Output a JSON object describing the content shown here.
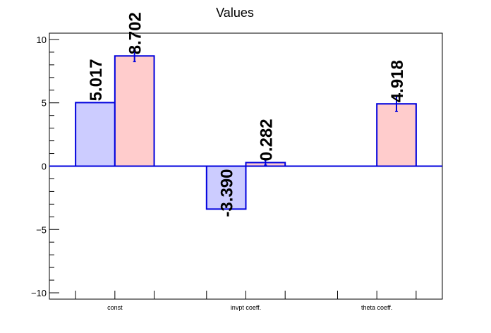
{
  "chart_data": {
    "type": "bar",
    "title": "Values",
    "xlabel": "",
    "ylabel": "",
    "categories": [
      "const",
      "invpt coeff.",
      "theta coeff."
    ],
    "ylim": [
      -10.5,
      10.5
    ],
    "yticks": [
      -10,
      -5,
      0,
      5,
      10
    ],
    "yticklabels": [
      "−10",
      "−5",
      "0",
      "5",
      "10"
    ],
    "grid": false,
    "legend": "none",
    "series": [
      {
        "color_fill": "#ccccff",
        "color_edge": "#0000dd",
        "values": [
          5.017,
          -3.39,
          null
        ],
        "errors": [
          0,
          0,
          0
        ],
        "labels": [
          "5.017",
          "-3.390",
          ""
        ]
      },
      {
        "color_fill": "#ffcccc",
        "color_edge": "#0000dd",
        "values": [
          8.702,
          0.282,
          4.918
        ],
        "errors": [
          0.45,
          0.2,
          0.6
        ],
        "labels": [
          "8.702",
          "0.282",
          "4.918"
        ]
      }
    ]
  }
}
